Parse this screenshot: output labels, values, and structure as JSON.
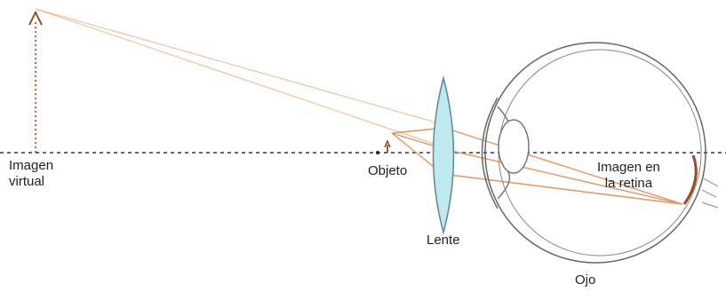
{
  "labels": {
    "virtual_image": [
      "Imagen",
      "virtual"
    ],
    "object": "Objeto",
    "lens": "Lente",
    "retina_image": [
      "Imagen en",
      "la retina"
    ],
    "eye": "Ojo"
  },
  "colors": {
    "axis": "#333333",
    "rays": "#e8a070",
    "arrow": "#8b3a1a",
    "lens_fill": "#bfe8ef",
    "lens_stroke": "#5a8a95",
    "eye_stroke": "#666666",
    "retina": "#a0461e"
  }
}
